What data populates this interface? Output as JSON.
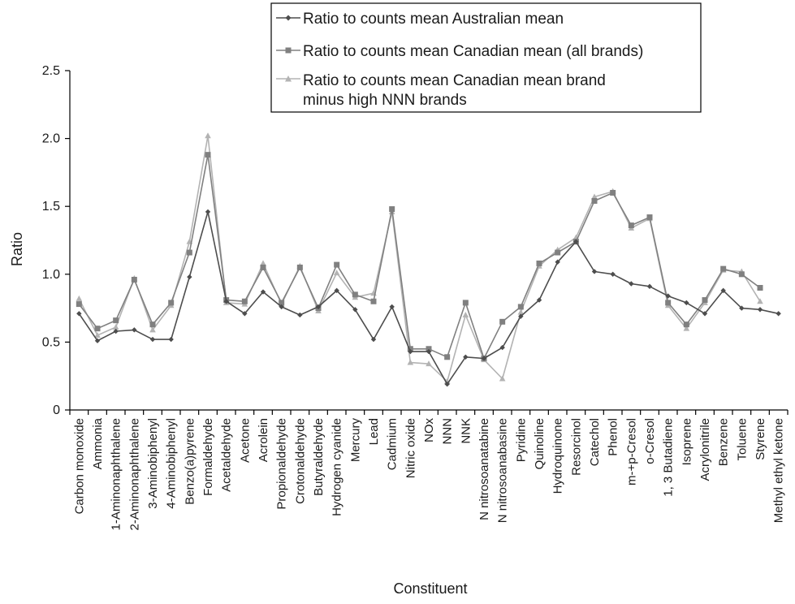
{
  "chart_data": {
    "type": "line",
    "title": "",
    "xlabel": "Constituent",
    "ylabel": "Ratio",
    "ylim": [
      0,
      2.5
    ],
    "yticks": [
      0,
      0.5,
      1.0,
      1.5,
      2.0,
      2.5
    ],
    "ytick_labels": [
      "0",
      "0.5",
      "1.0",
      "1.5",
      "2.0",
      "2.5"
    ],
    "grid": false,
    "legend_position": "top-right",
    "categories": [
      "Carbon monoxide",
      "Ammonia",
      "1-Aminonaphthalene",
      "2-Aminonaphthalene",
      "3-Aminobiphenyl",
      "4-Aminobiphenyl",
      "Benzo(a)pyrene",
      "Formaldehyde",
      "Acetaldehyde",
      "Acetone",
      "Acrolein",
      "Propionaldehyde",
      "Crotonaldehyde",
      "Butyraldehyde",
      "Hydrogen cyanide",
      "Mercury",
      "Lead",
      "Cadmium",
      "Nitric oxide",
      "NOx",
      "NNN",
      "NNK",
      "N nitrosoanatabine",
      "N nitrosoanabasine",
      "Pyridine",
      "Quinoline",
      "Hydroquinone",
      "Resorcinol",
      "Catechol",
      "Phenol",
      "m-+p-Cresol",
      "o-Cresol",
      "1, 3 Butadiene",
      "Isoprene",
      "Acrylonitrile",
      "Benzene",
      "Toluene",
      "Styrene",
      "Methyl ethyl ketone"
    ],
    "series": [
      {
        "name": "Ratio to counts mean Australian mean",
        "color": "#4d4d4d",
        "marker": "diamond",
        "values": [
          0.71,
          0.51,
          0.58,
          0.59,
          0.52,
          0.52,
          0.98,
          1.46,
          0.8,
          0.71,
          0.87,
          0.76,
          0.7,
          0.76,
          0.88,
          0.74,
          0.52,
          0.76,
          0.43,
          0.43,
          0.19,
          0.39,
          0.38,
          0.46,
          0.69,
          0.81,
          1.09,
          1.24,
          1.02,
          1.0,
          0.93,
          0.91,
          0.84,
          0.79,
          0.71,
          0.88,
          0.75,
          0.74,
          0.71
        ]
      },
      {
        "name": "Ratio to counts mean Canadian mean (all brands)",
        "color": "#808080",
        "marker": "square",
        "values": [
          0.78,
          0.6,
          0.66,
          0.96,
          0.63,
          0.79,
          1.16,
          1.88,
          0.81,
          0.8,
          1.05,
          0.79,
          1.05,
          0.75,
          1.07,
          0.85,
          0.8,
          1.48,
          0.45,
          0.45,
          0.39,
          0.79,
          0.38,
          0.65,
          0.76,
          1.08,
          1.16,
          1.24,
          1.54,
          1.6,
          1.36,
          1.42,
          0.79,
          0.63,
          0.81,
          1.04,
          1.0,
          0.9,
          null
        ]
      },
      {
        "name": "Ratio to counts mean Canadian mean brand minus high NNN brands",
        "color": "#b3b3b3",
        "marker": "triangle",
        "values": [
          0.82,
          0.55,
          0.61,
          0.97,
          0.59,
          0.77,
          1.24,
          2.02,
          0.79,
          0.78,
          1.08,
          0.78,
          1.06,
          0.73,
          1.01,
          0.83,
          0.86,
          1.46,
          0.35,
          0.34,
          0.21,
          0.7,
          0.37,
          0.23,
          0.72,
          1.06,
          1.18,
          1.27,
          1.57,
          1.61,
          1.34,
          1.41,
          0.77,
          0.6,
          0.79,
          1.03,
          1.02,
          0.8,
          null
        ]
      }
    ]
  }
}
